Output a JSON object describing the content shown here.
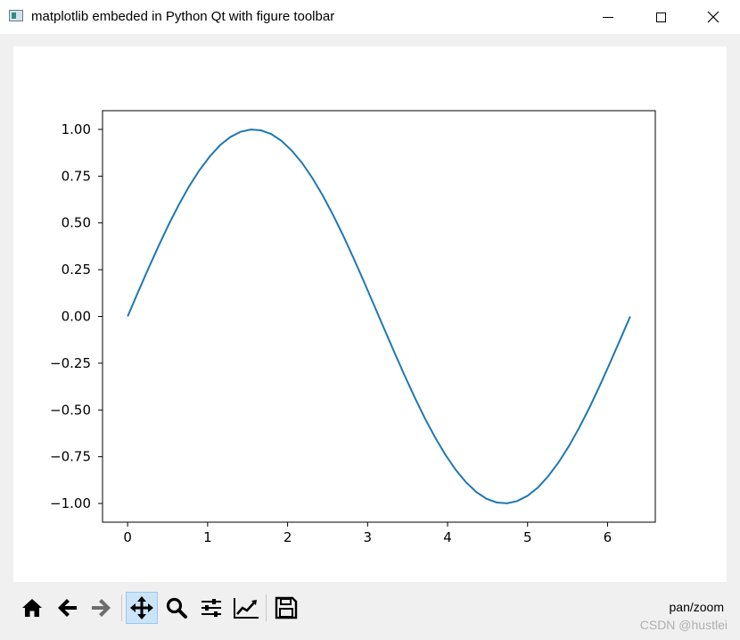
{
  "window": {
    "title": "matplotlib embeded in Python Qt with figure toolbar"
  },
  "toolbar": {
    "items": [
      {
        "name": "home",
        "icon": "home-icon",
        "active": false
      },
      {
        "name": "back",
        "icon": "arrow-left-icon",
        "active": false
      },
      {
        "name": "forward",
        "icon": "arrow-right-icon",
        "active": false,
        "disabled": true
      },
      {
        "name": "pan",
        "icon": "move-icon",
        "active": true
      },
      {
        "name": "zoom",
        "icon": "magnifier-icon",
        "active": false
      },
      {
        "name": "subplots",
        "icon": "sliders-icon",
        "active": false
      },
      {
        "name": "customize",
        "icon": "line-chart-icon",
        "active": false
      },
      {
        "name": "save",
        "icon": "floppy-disk-icon",
        "active": false
      }
    ],
    "status": "pan/zoom"
  },
  "watermark": "CSDN @hustlei",
  "chart_data": {
    "type": "line",
    "title": "",
    "xlabel": "",
    "ylabel": "",
    "xlim": [
      -0.314,
      6.597
    ],
    "ylim": [
      -1.1,
      1.1
    ],
    "xticks": [
      0,
      1,
      2,
      3,
      4,
      5,
      6
    ],
    "yticks": [
      1.0,
      0.75,
      0.5,
      0.25,
      0.0,
      -0.25,
      -0.5,
      -0.75,
      -1.0
    ],
    "xtick_labels": [
      "0",
      "1",
      "2",
      "3",
      "4",
      "5",
      "6"
    ],
    "ytick_labels": [
      "1.00",
      "0.75",
      "0.50",
      "0.25",
      "0.00",
      "−0.25",
      "−0.50",
      "−0.75",
      "−1.00"
    ],
    "grid": false,
    "line_color": "#1f77b4",
    "x": [
      0,
      0.128,
      0.256,
      0.385,
      0.513,
      0.641,
      0.769,
      0.898,
      1.026,
      1.154,
      1.282,
      1.41,
      1.539,
      1.667,
      1.795,
      1.923,
      2.051,
      2.18,
      2.308,
      2.436,
      2.564,
      2.693,
      2.821,
      2.949,
      3.077,
      3.205,
      3.334,
      3.462,
      3.59,
      3.718,
      3.847,
      3.975,
      4.103,
      4.231,
      4.359,
      4.488,
      4.616,
      4.744,
      4.872,
      5.0,
      5.129,
      5.257,
      5.385,
      5.513,
      5.642,
      5.77,
      5.898,
      6.026,
      6.154,
      6.283
    ],
    "y": [
      0,
      0.128,
      0.253,
      0.375,
      0.491,
      0.598,
      0.696,
      0.782,
      0.855,
      0.915,
      0.959,
      0.987,
      0.999,
      0.995,
      0.975,
      0.939,
      0.887,
      0.821,
      0.741,
      0.649,
      0.546,
      0.434,
      0.315,
      0.191,
      0.064,
      -0.064,
      -0.191,
      -0.315,
      -0.434,
      -0.546,
      -0.649,
      -0.741,
      -0.821,
      -0.887,
      -0.939,
      -0.975,
      -0.995,
      -0.999,
      -0.987,
      -0.959,
      -0.915,
      -0.855,
      -0.782,
      -0.696,
      -0.598,
      -0.491,
      -0.375,
      -0.253,
      -0.128,
      0
    ]
  }
}
